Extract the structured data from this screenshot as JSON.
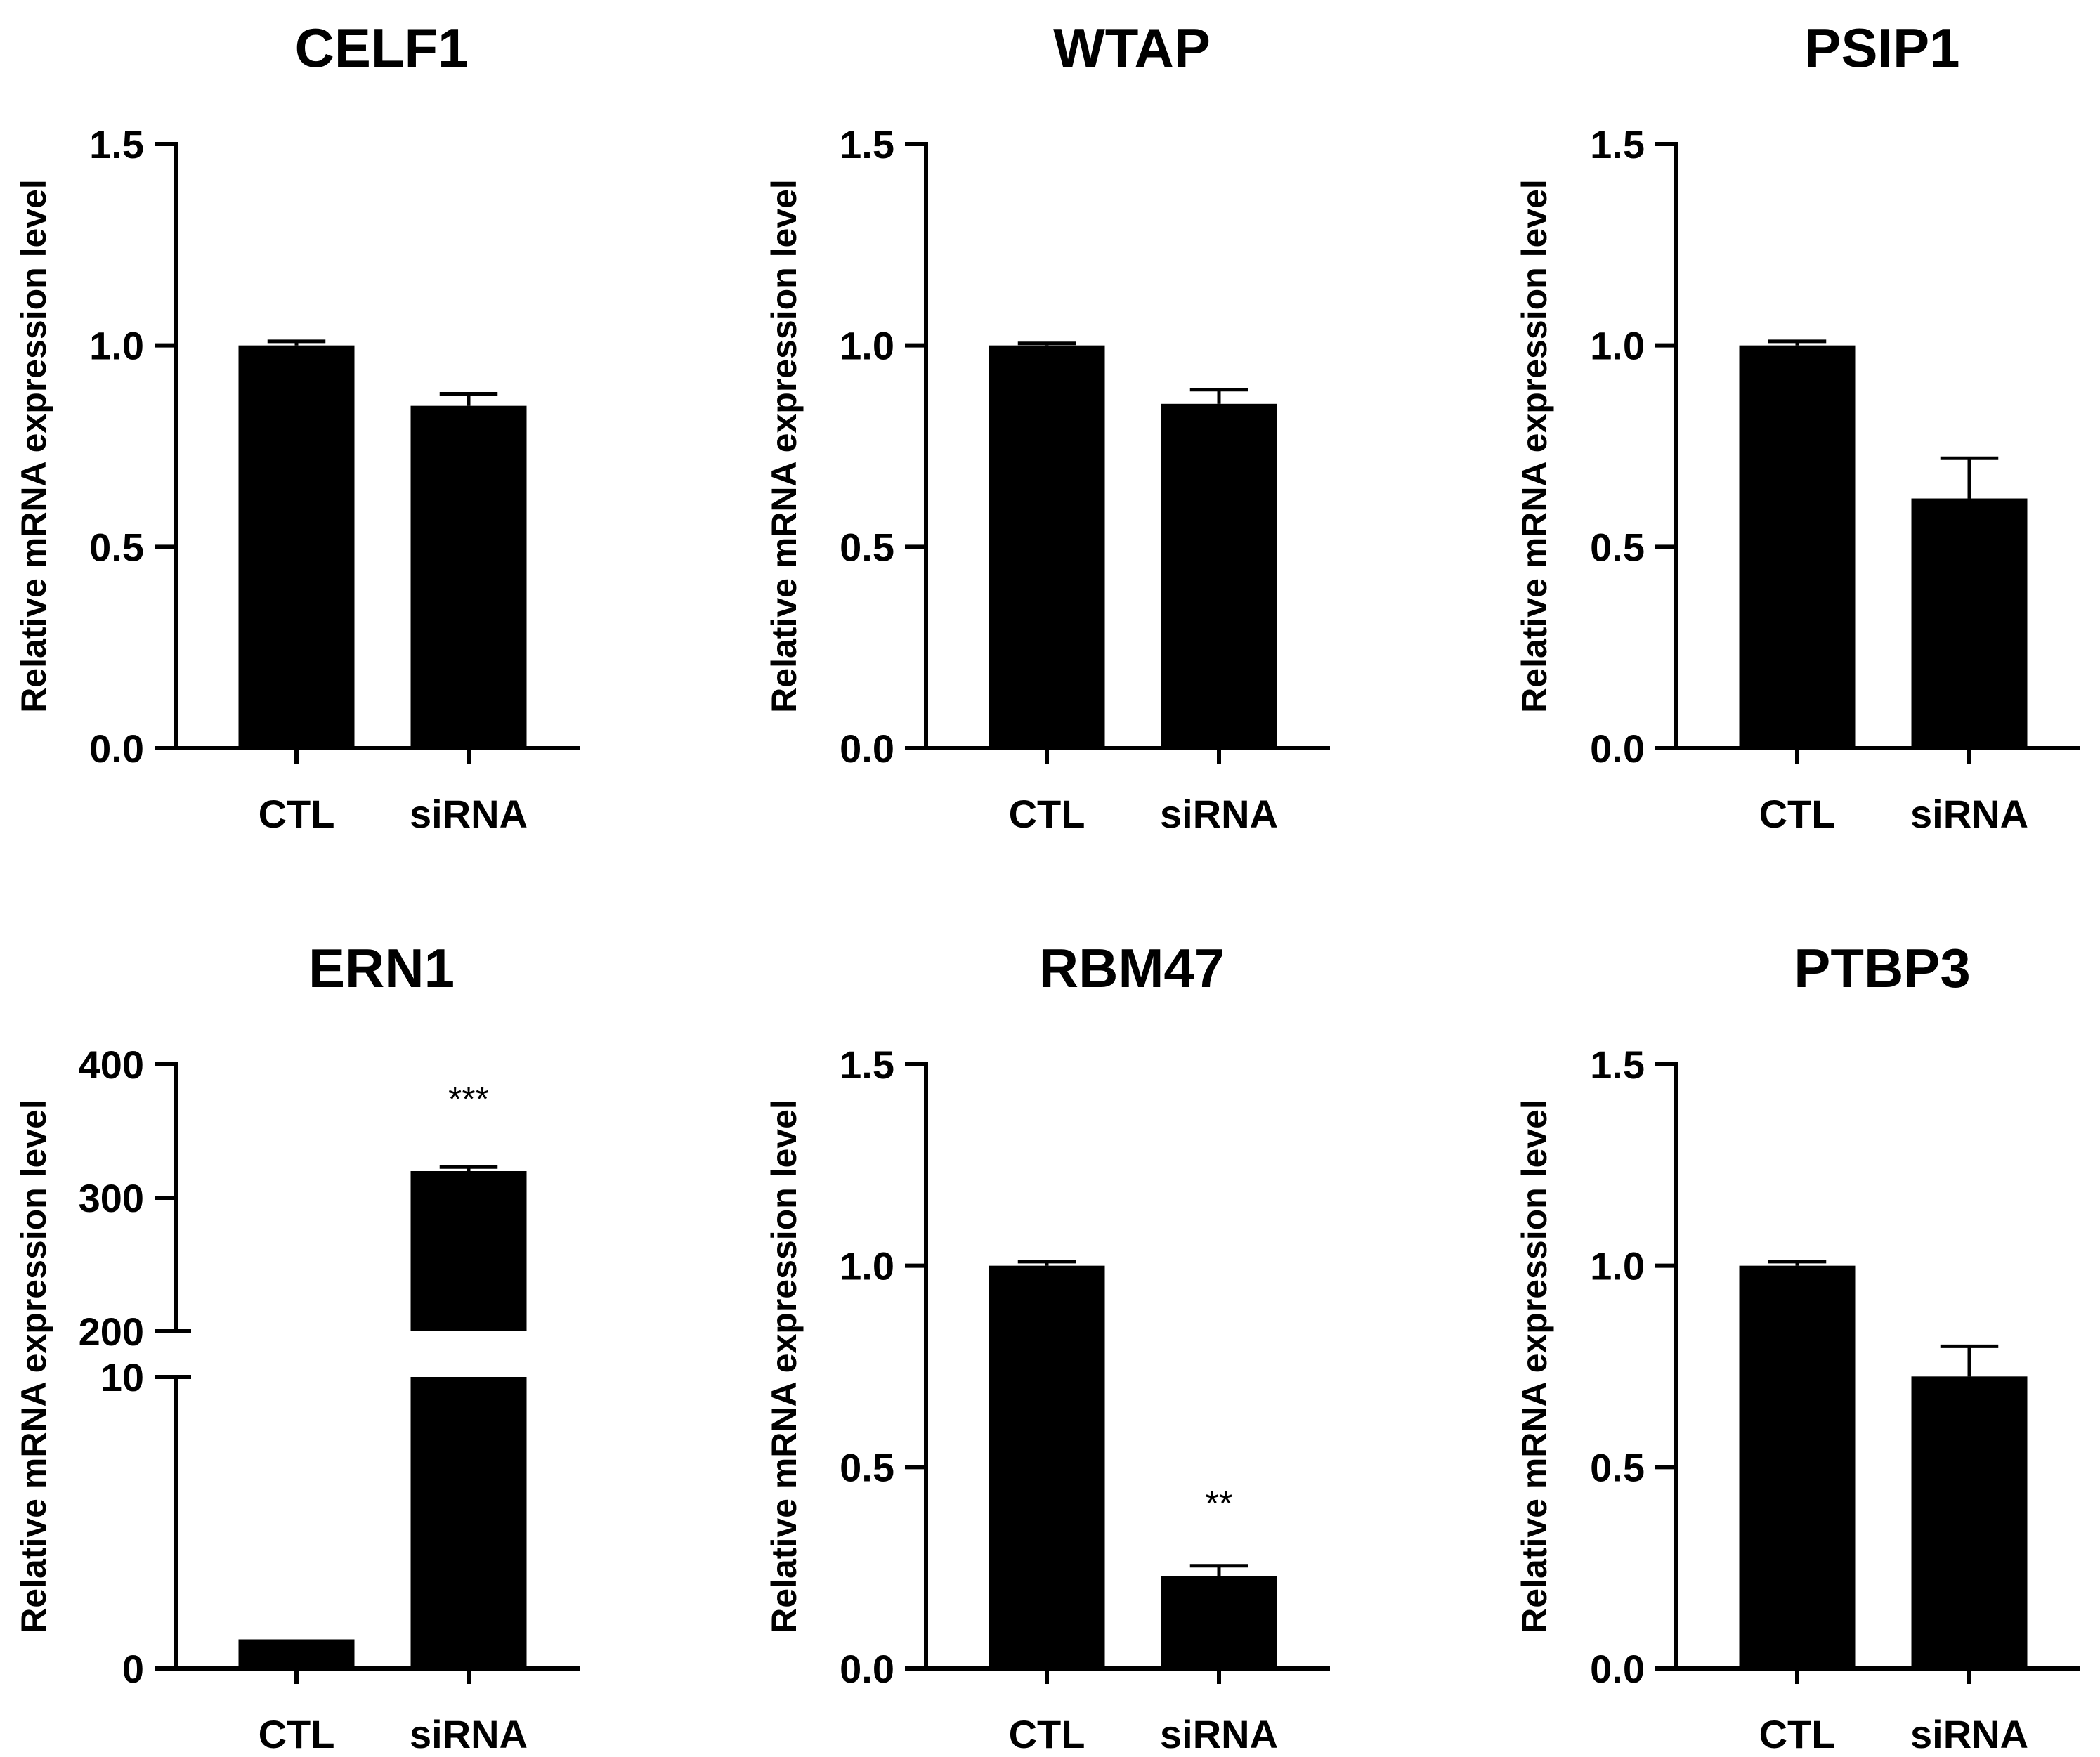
{
  "chart_data": [
    {
      "type": "bar",
      "title": "CELF1",
      "ylabel": "Relative mRNA expression level",
      "categories": [
        "CTL",
        "siRNA"
      ],
      "values": [
        1.0,
        0.85
      ],
      "errors": [
        0.01,
        0.03
      ],
      "ylim": [
        0,
        1.5
      ],
      "yticks": [
        0,
        0.5,
        1.0,
        1.5
      ],
      "ytick_labels": [
        "0.0",
        "0.5",
        "1.0",
        "1.5"
      ],
      "significance": [
        "",
        ""
      ]
    },
    {
      "type": "bar",
      "title": "WTAP",
      "ylabel": "Relative mRNA expression level",
      "categories": [
        "CTL",
        "siRNA"
      ],
      "values": [
        1.0,
        0.855
      ],
      "errors": [
        0.005,
        0.035
      ],
      "ylim": [
        0,
        1.5
      ],
      "yticks": [
        0,
        0.5,
        1.0,
        1.5
      ],
      "ytick_labels": [
        "0.0",
        "0.5",
        "1.0",
        "1.5"
      ],
      "significance": [
        "",
        ""
      ]
    },
    {
      "type": "bar",
      "title": "PSIP1",
      "ylabel": "Relative mRNA expression level",
      "categories": [
        "CTL",
        "siRNA"
      ],
      "values": [
        1.0,
        0.62
      ],
      "errors": [
        0.01,
        0.1
      ],
      "ylim": [
        0,
        1.5
      ],
      "yticks": [
        0,
        0.5,
        1.0,
        1.5
      ],
      "ytick_labels": [
        "0.0",
        "0.5",
        "1.0",
        "1.5"
      ],
      "significance": [
        "",
        ""
      ]
    },
    {
      "type": "bar",
      "title": "ERN1",
      "ylabel": "Relative mRNA expression level",
      "categories": [
        "CTL",
        "siRNA"
      ],
      "values": [
        1.0,
        320
      ],
      "errors": [
        0,
        3
      ],
      "broken_axis": {
        "lower": {
          "range": [
            0,
            10
          ],
          "ticks": [
            0,
            10
          ],
          "tick_labels": [
            "0",
            "10"
          ]
        },
        "upper": {
          "range": [
            200,
            400
          ],
          "ticks": [
            200,
            300,
            400
          ],
          "tick_labels": [
            "200",
            "300",
            "400"
          ]
        }
      },
      "significance": [
        "",
        "***"
      ]
    },
    {
      "type": "bar",
      "title": "RBM47",
      "ylabel": "Relative mRNA expression level",
      "categories": [
        "CTL",
        "siRNA"
      ],
      "values": [
        1.0,
        0.23
      ],
      "errors": [
        0.01,
        0.025
      ],
      "ylim": [
        0,
        1.5
      ],
      "yticks": [
        0,
        0.5,
        1.0,
        1.5
      ],
      "ytick_labels": [
        "0.0",
        "0.5",
        "1.0",
        "1.5"
      ],
      "significance": [
        "",
        "**"
      ]
    },
    {
      "type": "bar",
      "title": "PTBP3",
      "ylabel": "Relative mRNA expression level",
      "categories": [
        "CTL",
        "siRNA"
      ],
      "values": [
        1.0,
        0.725
      ],
      "errors": [
        0.01,
        0.075
      ],
      "ylim": [
        0,
        1.5
      ],
      "yticks": [
        0,
        0.5,
        1.0,
        1.5
      ],
      "ytick_labels": [
        "0.0",
        "0.5",
        "1.0",
        "1.5"
      ],
      "significance": [
        "",
        ""
      ]
    }
  ],
  "colors": {
    "bar": "#000000",
    "axis": "#000000",
    "background": "#ffffff"
  }
}
